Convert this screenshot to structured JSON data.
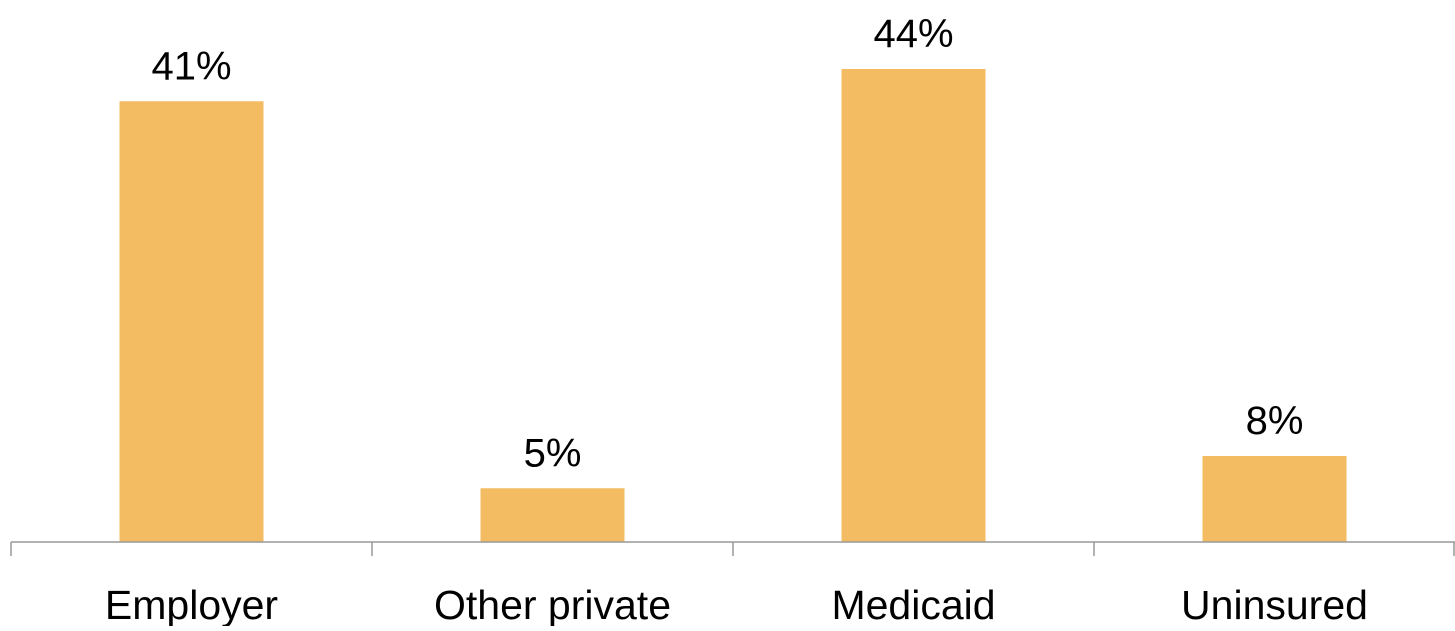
{
  "chart_data": {
    "type": "bar",
    "categories": [
      "Employer",
      "Other private",
      "Medicaid",
      "Uninsured"
    ],
    "values": [
      41,
      5,
      44,
      8
    ],
    "value_labels": [
      "41%",
      "5%",
      "44%",
      "8%"
    ],
    "unit": "%",
    "ylim": [
      0,
      50
    ],
    "grid": false,
    "legend": "none",
    "bar_color": "#F4BC62",
    "axis_color": "#999999"
  }
}
